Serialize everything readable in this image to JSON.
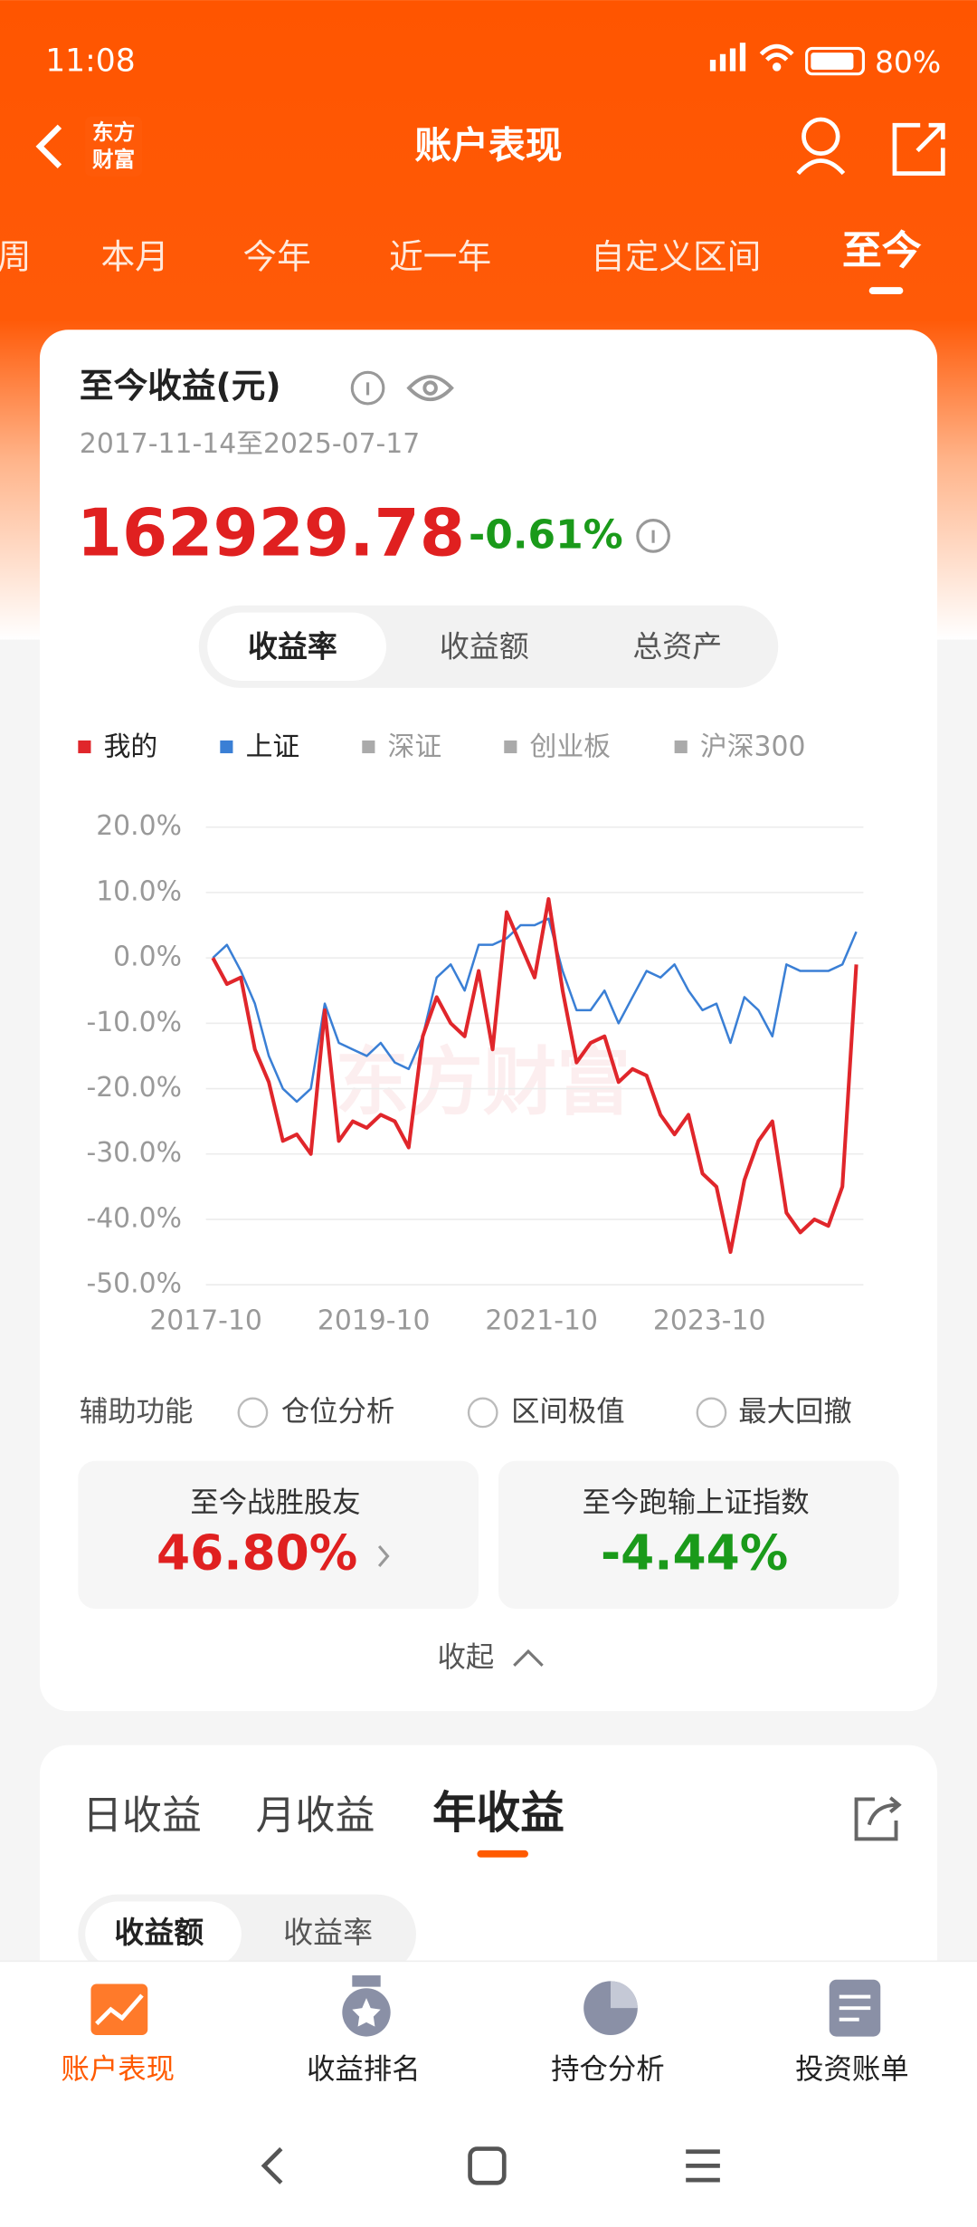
{
  "status_bar": {
    "time": "11:08",
    "battery": "80%"
  },
  "header": {
    "title": "账户表现",
    "logo_lines": [
      "东方",
      "财富"
    ]
  },
  "period_tabs": [
    "周",
    "本月",
    "今年",
    "近一年",
    "自定义区间",
    "至今"
  ],
  "summary": {
    "title": "至今收益(元)",
    "date_range": "2017-11-14至2025-07-17",
    "amount": "162929.78",
    "change": "-0.61%"
  },
  "mode_tabs": [
    "收益率",
    "收益额",
    "总资产"
  ],
  "chart_data": {
    "type": "line",
    "watermark": "东方财富",
    "x": [
      "2017-11",
      "2018-01",
      "2018-03",
      "2018-05",
      "2018-07",
      "2018-09",
      "2018-11",
      "2019-01",
      "2019-03",
      "2019-05",
      "2019-07",
      "2019-09",
      "2019-11",
      "2020-01",
      "2020-03",
      "2020-05",
      "2020-07",
      "2020-09",
      "2020-11",
      "2021-01",
      "2021-03",
      "2021-05",
      "2021-07",
      "2021-09",
      "2021-11",
      "2022-01",
      "2022-03",
      "2022-05",
      "2022-07",
      "2022-09",
      "2022-11",
      "2023-01",
      "2023-03",
      "2023-05",
      "2023-07",
      "2023-09",
      "2023-11",
      "2024-01",
      "2024-03",
      "2024-05",
      "2024-07",
      "2024-09",
      "2024-11",
      "2025-01",
      "2025-03",
      "2025-05",
      "2025-07"
    ],
    "series": [
      {
        "name": "我的",
        "color": "#e0262b",
        "values": [
          0,
          -4,
          -3,
          -14,
          -19,
          -28,
          -27,
          -30,
          -8,
          -28,
          -25,
          -26,
          -24,
          -25,
          -29,
          -12,
          -6,
          -10,
          -12,
          -2,
          -14,
          7,
          2,
          -3,
          9,
          -5,
          -16,
          -13,
          -12,
          -19,
          -17,
          -18,
          -24,
          -27,
          -24,
          -33,
          -35,
          -45,
          -34,
          -28,
          -25,
          -39,
          -42,
          -40,
          -41,
          -35,
          -1
        ]
      },
      {
        "name": "上证",
        "color": "#3a7fd5",
        "values": [
          0,
          2,
          -2,
          -7,
          -15,
          -20,
          -22,
          -20,
          -7,
          -13,
          -14,
          -15,
          -13,
          -16,
          -17,
          -12,
          -3,
          -1,
          -5,
          2,
          2,
          3,
          5,
          5,
          6,
          -2,
          -8,
          -8,
          -5,
          -10,
          -6,
          -2,
          -3,
          -1,
          -5,
          -8,
          -7,
          -13,
          -6,
          -8,
          -12,
          -1,
          -2,
          -2,
          -2,
          -1,
          4
        ]
      }
    ],
    "inactive_series": [
      "深证",
      "创业板",
      "沪深300"
    ],
    "xlim": [
      "2017-10",
      "2025-07"
    ],
    "xticks": [
      "2017-10",
      "2019-10",
      "2021-10",
      "2023-10"
    ],
    "ylim": [
      -50,
      20
    ],
    "yticks": [
      {
        "value": 20,
        "label": "20.0%"
      },
      {
        "value": 10,
        "label": "10.0%"
      },
      {
        "value": 0,
        "label": "0.0%"
      },
      {
        "value": -10,
        "label": "-10.0%"
      },
      {
        "value": -20,
        "label": "-20.0%"
      },
      {
        "value": -30,
        "label": "-30.0%"
      },
      {
        "value": -40,
        "label": "-40.0%"
      },
      {
        "value": -50,
        "label": "-50.0%"
      }
    ],
    "grid": true
  },
  "aux": {
    "label": "辅助功能",
    "options": [
      "仓位分析",
      "区间极值",
      "最大回撤"
    ]
  },
  "stats": [
    {
      "label": "至今战胜股友",
      "value": "46.80%"
    },
    {
      "label": "至今跑输上证指数",
      "value": "-4.44%"
    }
  ],
  "collapse": "收起",
  "earnings_tabs": [
    "日收益",
    "月收益",
    "年收益"
  ],
  "earnings_mode": [
    "收益额",
    "收益率"
  ],
  "bottom_nav": [
    "账户表现",
    "收益排名",
    "持仓分析",
    "投资账单"
  ]
}
